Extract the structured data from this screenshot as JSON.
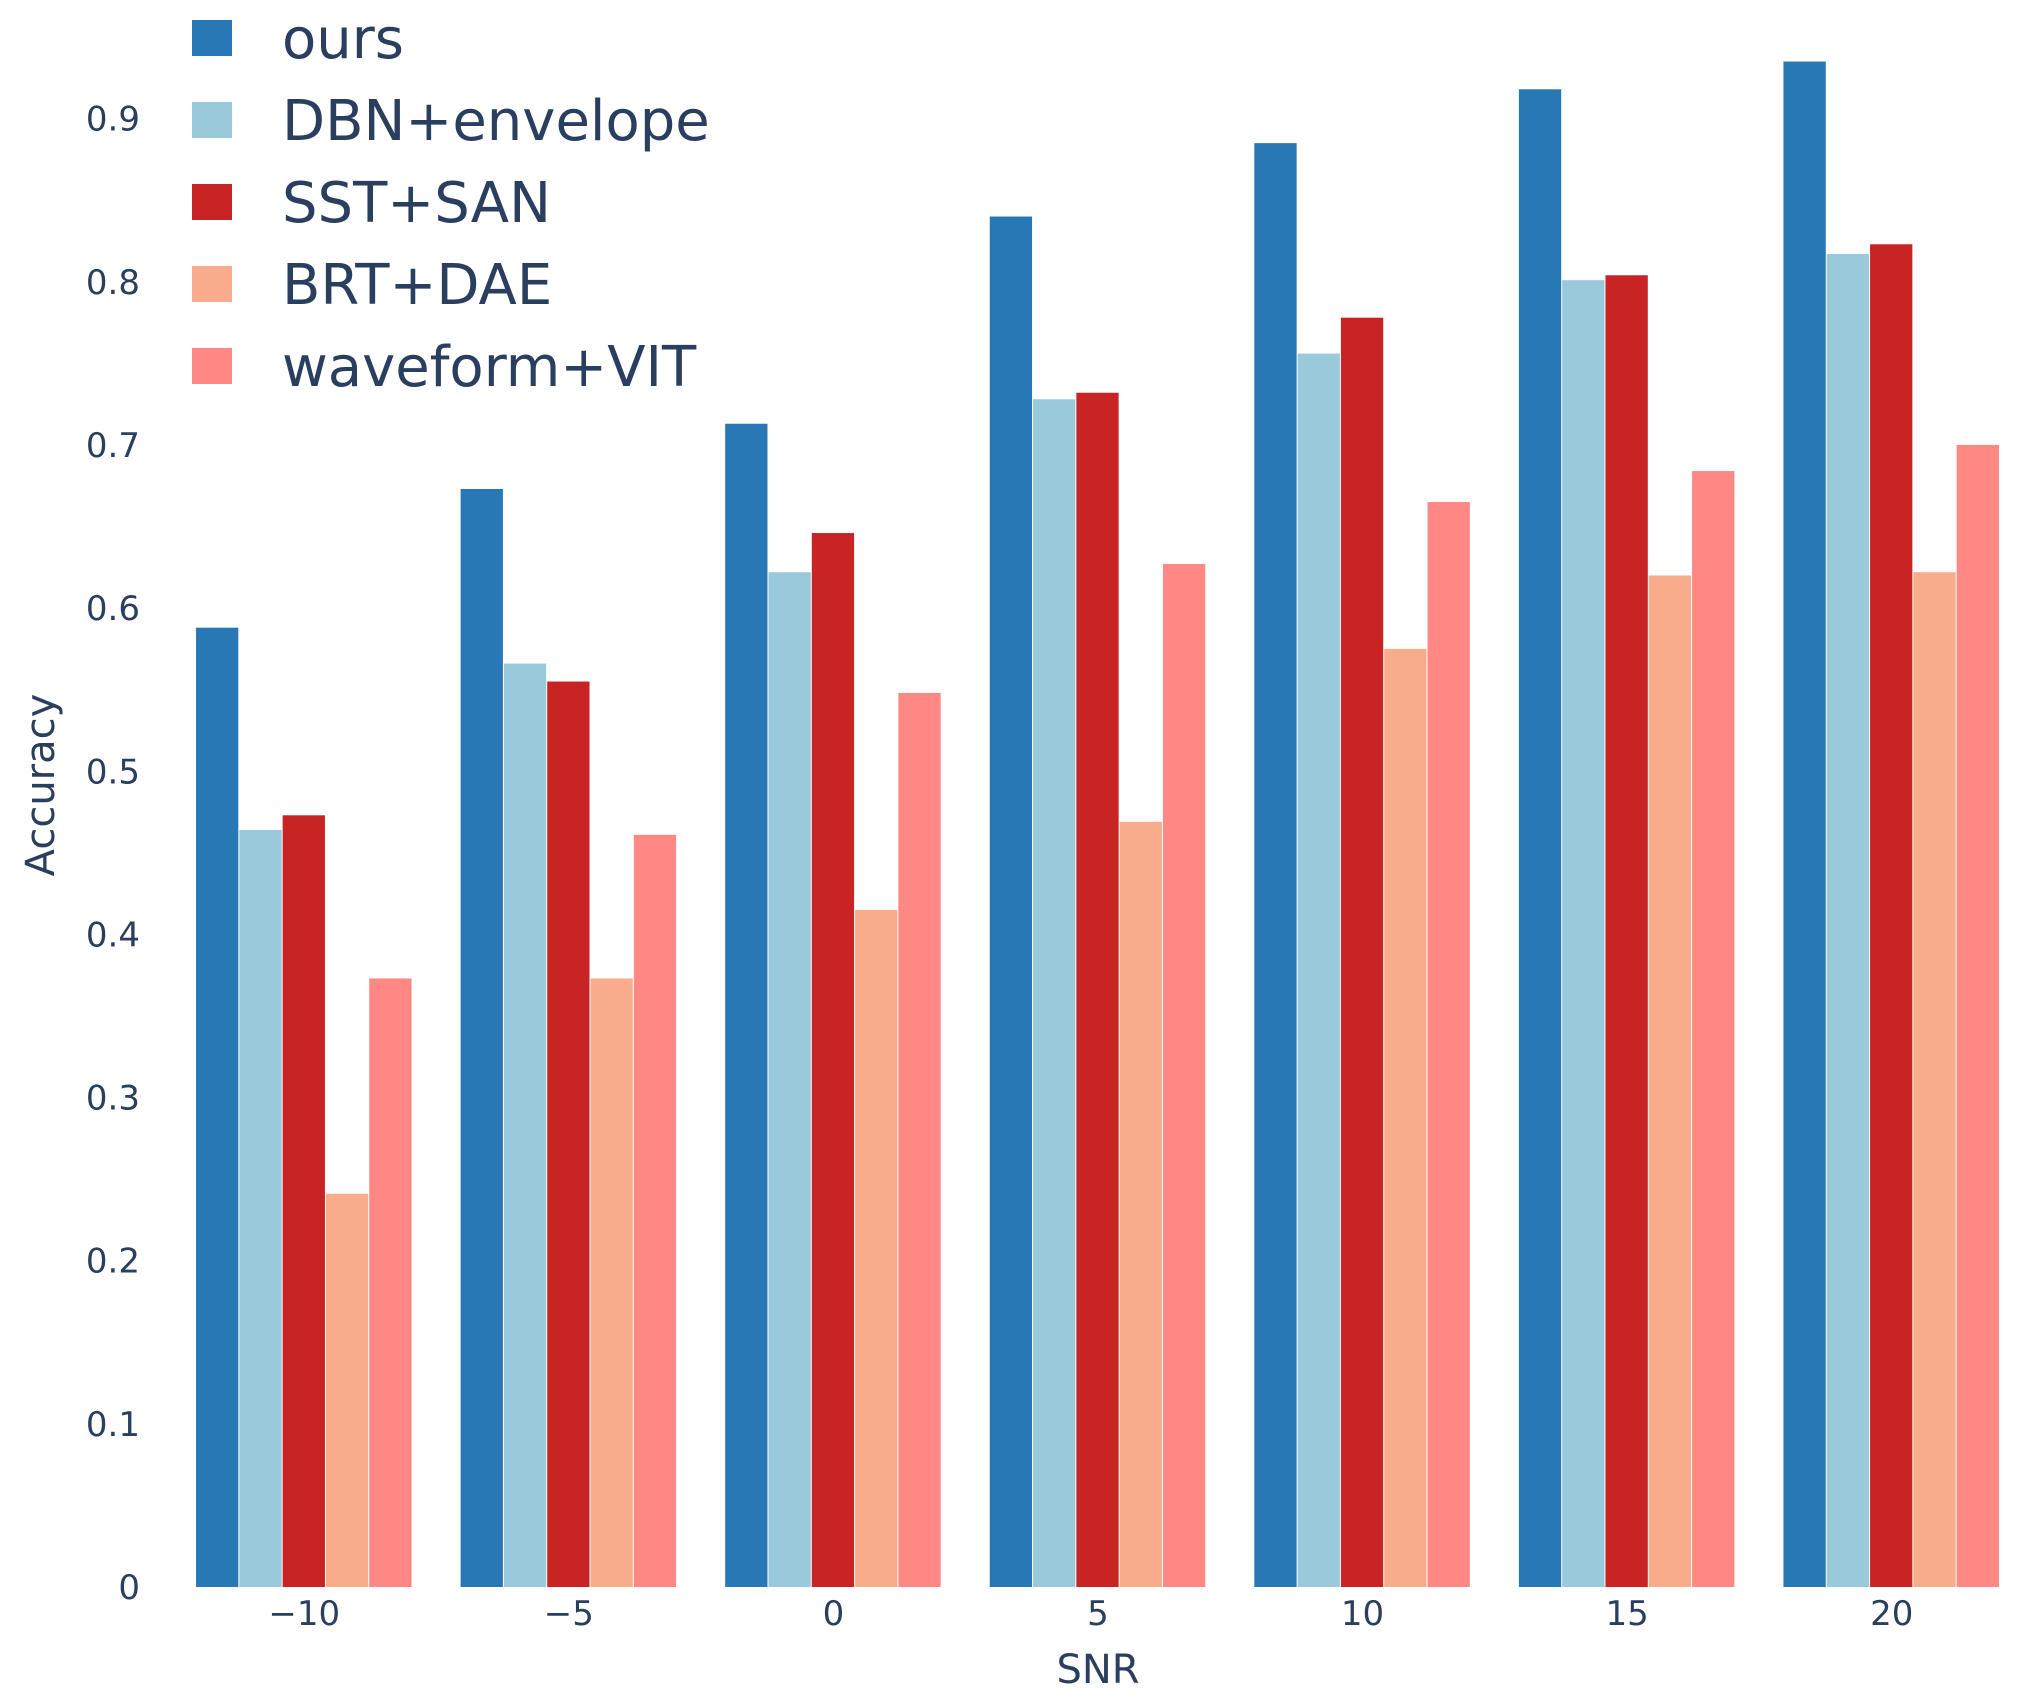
{
  "chart_data": {
    "type": "bar",
    "title": "",
    "xlabel": "SNR",
    "ylabel": "Accuracy",
    "categories": [
      "−10",
      "−5",
      "0",
      "5",
      "10",
      "15",
      "20"
    ],
    "ylim": [
      0,
      0.95
    ],
    "yticks": [
      "0",
      "0.1",
      "0.2",
      "0.3",
      "0.4",
      "0.5",
      "0.6",
      "0.7",
      "0.8",
      "0.9"
    ],
    "ytick_values": [
      0,
      0.1,
      0.2,
      0.3,
      0.4,
      0.5,
      0.6,
      0.7,
      0.8,
      0.9
    ],
    "grid": false,
    "legend_position": "top-left",
    "series": [
      {
        "name": "ours",
        "color": "#2878b5",
        "values": [
          0.588,
          0.673,
          0.713,
          0.84,
          0.885,
          0.918,
          0.935
        ]
      },
      {
        "name": "DBN+envelope",
        "color": "#9ac9db",
        "values": [
          0.464,
          0.566,
          0.622,
          0.728,
          0.756,
          0.801,
          0.817
        ]
      },
      {
        "name": "SST+SAN",
        "color": "#c82423",
        "values": [
          0.473,
          0.555,
          0.646,
          0.732,
          0.778,
          0.804,
          0.823
        ]
      },
      {
        "name": "BRT+DAE",
        "color": "#f8ac8c",
        "values": [
          0.241,
          0.373,
          0.415,
          0.469,
          0.575,
          0.62,
          0.622
        ]
      },
      {
        "name": "waveform+VIT",
        "color": "#ff8884",
        "values": [
          0.373,
          0.461,
          0.548,
          0.627,
          0.665,
          0.684,
          0.7
        ]
      }
    ]
  }
}
